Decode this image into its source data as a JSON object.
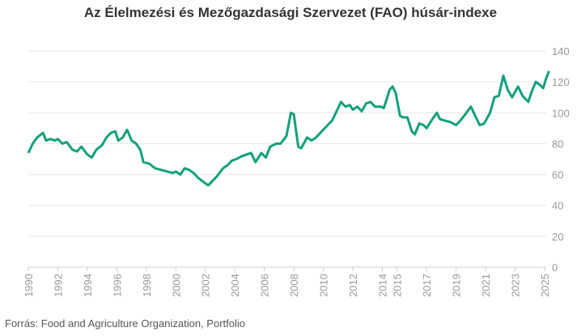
{
  "chart_data": {
    "type": "line",
    "title": "Az Élelmezési és Mezőgazdasági Szervezet (FAO) húsár-indexe",
    "xlabel": "",
    "ylabel": "",
    "ylim": [
      0,
      140
    ],
    "xlim": [
      1990,
      2025.3
    ],
    "yticks": [
      "0",
      "20",
      "40",
      "60",
      "80",
      "100",
      "120",
      "140"
    ],
    "xticks": [
      "1990",
      "1992",
      "1994",
      "1996",
      "1998",
      "2000",
      "2002",
      "2004",
      "2006",
      "2008",
      "2010",
      "2012",
      "2014",
      "2015",
      "2017",
      "2019",
      "2021",
      "2023",
      "2025"
    ],
    "grid": true,
    "color": "#12a07a",
    "series": [
      {
        "name": "FAO húsár-index",
        "x": [
          1990.0,
          1990.3,
          1990.6,
          1991.0,
          1991.2,
          1991.5,
          1991.8,
          1992.0,
          1992.3,
          1992.6,
          1993.0,
          1993.3,
          1993.6,
          1994.0,
          1994.3,
          1994.6,
          1995.0,
          1995.3,
          1995.6,
          1995.9,
          1996.1,
          1996.4,
          1996.7,
          1997.0,
          1997.3,
          1997.6,
          1997.8,
          1998.2,
          1998.6,
          1999.0,
          1999.4,
          1999.8,
          2000.0,
          2000.3,
          2000.6,
          2000.9,
          2001.2,
          2001.5,
          2001.9,
          2002.2,
          2002.5,
          2002.8,
          2003.2,
          2003.5,
          2003.8,
          2004.1,
          2004.5,
          2004.8,
          2005.1,
          2005.4,
          2005.8,
          2006.1,
          2006.4,
          2006.8,
          2007.1,
          2007.5,
          2007.8,
          2008.0,
          2008.3,
          2008.5,
          2008.9,
          2009.2,
          2009.5,
          2009.9,
          2010.3,
          2010.6,
          2010.9,
          2011.2,
          2011.5,
          2011.8,
          2012.0,
          2012.3,
          2012.6,
          2012.9,
          2013.2,
          2013.5,
          2013.9,
          2014.1,
          2014.5,
          2014.7,
          2014.9,
          2015.2,
          2015.4,
          2015.7,
          2016.0,
          2016.2,
          2016.5,
          2016.8,
          2017.0,
          2017.4,
          2017.7,
          2017.9,
          2018.2,
          2018.6,
          2019.0,
          2019.3,
          2019.7,
          2020.0,
          2020.3,
          2020.6,
          2020.9,
          2021.3,
          2021.6,
          2021.9,
          2022.2,
          2022.5,
          2022.8,
          2023.2,
          2023.5,
          2023.9,
          2024.1,
          2024.4,
          2024.7,
          2024.9,
          2025.1,
          2025.3
        ],
        "values": [
          74,
          80,
          84,
          87,
          82,
          83,
          82,
          83,
          80,
          81,
          76,
          75,
          78,
          73,
          71,
          76,
          79,
          84,
          87,
          88,
          82,
          84,
          89,
          82,
          80,
          76,
          68,
          67,
          64,
          63,
          62,
          61,
          62,
          60,
          64,
          63,
          61,
          58,
          55,
          53,
          56,
          59,
          64,
          66,
          69,
          70,
          72,
          73,
          74,
          68,
          74,
          71,
          78,
          80,
          80,
          85,
          100,
          99,
          78,
          77,
          84,
          82,
          84,
          88,
          92,
          95,
          101,
          107,
          104,
          105,
          102,
          104,
          101,
          106,
          107,
          104,
          104,
          103,
          115,
          117,
          113,
          98,
          97,
          97,
          88,
          86,
          93,
          92,
          90,
          96,
          100,
          96,
          95,
          94,
          92,
          95,
          100,
          104,
          98,
          92,
          93,
          100,
          110,
          111,
          124,
          115,
          110,
          117,
          111,
          107,
          113,
          120,
          118,
          116,
          122,
          127
        ]
      }
    ]
  },
  "source": "Forrás: Food and Agriculture Organization, Portfolio"
}
